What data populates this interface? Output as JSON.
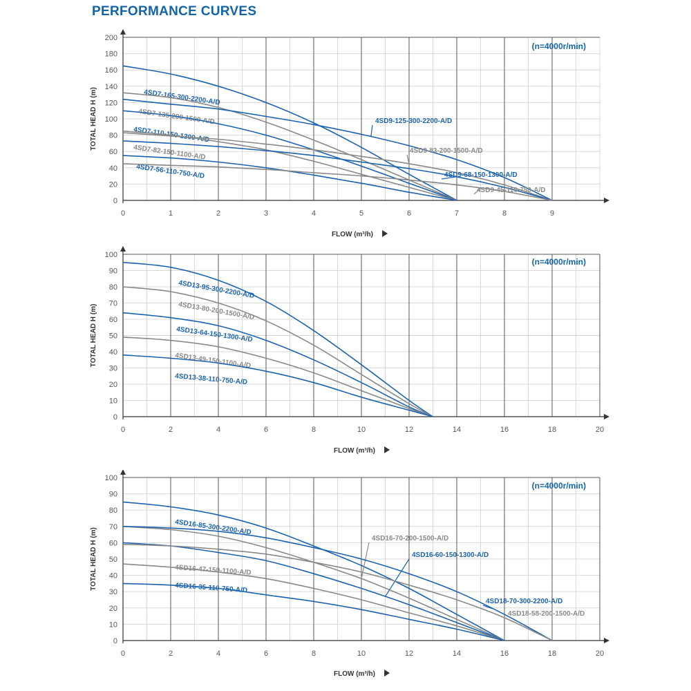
{
  "page_title": "PERFORMANCE CURVES",
  "colors": {
    "blue": "#1a62b0",
    "gray": "#888888",
    "grid_major": "#555555",
    "grid_minor": "#d8d8d8",
    "title": "#1463a8"
  },
  "chart_data": [
    {
      "type": "line",
      "xlabel": "FLOW (m³/h)",
      "ylabel": "TOTAL HEAD H (m)",
      "speed": "(n=4000r/min)",
      "xlim": [
        0,
        10
      ],
      "ylim": [
        0,
        200
      ],
      "xticks": [
        0,
        1,
        2,
        3,
        4,
        5,
        6,
        7,
        8,
        9
      ],
      "yticks": [
        0,
        20,
        40,
        60,
        80,
        100,
        120,
        140,
        160,
        180,
        200
      ],
      "grid": true,
      "series": [
        {
          "name": "4SD7-165-300-2200-A/D",
          "color": "blue",
          "x": [
            0,
            1,
            2,
            3,
            4,
            5,
            6,
            7
          ],
          "y": [
            165,
            155,
            140,
            120,
            95,
            65,
            32,
            0
          ]
        },
        {
          "name": "4SD7-135-200-1500-A/D",
          "color": "gray",
          "x": [
            0,
            1,
            2,
            3,
            4,
            5,
            6,
            7
          ],
          "y": [
            132,
            126,
            114,
            96,
            74,
            50,
            25,
            0
          ]
        },
        {
          "name": "4SD7-110-150-1300-A/D",
          "color": "blue",
          "x": [
            0,
            1,
            2,
            3,
            4,
            5,
            6,
            7
          ],
          "y": [
            110,
            104,
            94,
            80,
            62,
            42,
            21,
            0
          ]
        },
        {
          "name": "4SD7-82-150-1100-A/D",
          "color": "gray",
          "x": [
            0,
            1,
            2,
            3,
            4,
            5,
            6,
            7
          ],
          "y": [
            85,
            80,
            72,
            62,
            48,
            32,
            16,
            0
          ]
        },
        {
          "name": "4SD7-56-110-750-A/D",
          "color": "blue",
          "x": [
            0,
            1,
            2,
            3,
            4,
            5,
            6,
            7
          ],
          "y": [
            55,
            52,
            47,
            40,
            31,
            21,
            10,
            0
          ]
        },
        {
          "name": "4SD9-125-300-2200-A/D",
          "color": "blue",
          "x": [
            0,
            1,
            2,
            3,
            4,
            5,
            6,
            7,
            8,
            9
          ],
          "y": [
            124,
            118,
            112,
            103,
            93,
            81,
            67,
            50,
            28,
            0
          ]
        },
        {
          "name": "4SD9-83-200-1500-A/D",
          "color": "gray",
          "x": [
            0,
            1,
            2,
            3,
            4,
            5,
            6,
            7,
            8,
            9
          ],
          "y": [
            83,
            79,
            75,
            69,
            62,
            54,
            45,
            34,
            19,
            0
          ]
        },
        {
          "name": "4SD9-68-150-1300-A/D",
          "color": "blue",
          "x": [
            0,
            1,
            2,
            3,
            4,
            5,
            6,
            7,
            8,
            9
          ],
          "y": [
            73,
            70,
            66,
            61,
            55,
            47,
            39,
            29,
            16,
            0
          ]
        },
        {
          "name": "4SD9-45-110-750-A/D",
          "color": "gray",
          "x": [
            0,
            1,
            2,
            3,
            4,
            5,
            6,
            7,
            8,
            9
          ],
          "y": [
            45,
            43,
            41,
            38,
            34,
            30,
            25,
            19,
            11,
            0
          ]
        }
      ]
    },
    {
      "type": "line",
      "xlabel": "FLOW (m³/h)",
      "ylabel": "TOTAL HEAD H (m)",
      "speed": "(n=4000r/min)",
      "xlim": [
        0,
        20
      ],
      "ylim": [
        0,
        100
      ],
      "xticks": [
        0,
        2,
        4,
        6,
        8,
        10,
        12,
        14,
        16,
        18,
        20
      ],
      "yticks": [
        0,
        10,
        20,
        30,
        40,
        50,
        60,
        70,
        80,
        90,
        100
      ],
      "grid": true,
      "series": [
        {
          "name": "4SD13-95-300-2200-A/D",
          "color": "blue",
          "x": [
            0,
            2,
            4,
            6,
            8,
            10,
            12,
            13
          ],
          "y": [
            95,
            92,
            84,
            71,
            53,
            32,
            10,
            0
          ]
        },
        {
          "name": "4SD13-80-200-1500-A/D",
          "color": "gray",
          "x": [
            0,
            2,
            4,
            6,
            8,
            10,
            12,
            13
          ],
          "y": [
            80,
            77,
            70,
            59,
            44,
            26,
            8,
            0
          ]
        },
        {
          "name": "4SD13-64-150-1300-A/D",
          "color": "blue",
          "x": [
            0,
            2,
            4,
            6,
            8,
            10,
            12,
            13
          ],
          "y": [
            64,
            61,
            56,
            47,
            35,
            21,
            6,
            0
          ]
        },
        {
          "name": "4SD13-49-150-1100-A/D",
          "color": "gray",
          "x": [
            0,
            2,
            4,
            6,
            8,
            10,
            12,
            13
          ],
          "y": [
            49,
            47,
            43,
            36,
            27,
            16,
            5,
            0
          ]
        },
        {
          "name": "4SD13-38-110-750-A/D",
          "color": "blue",
          "x": [
            0,
            2,
            4,
            6,
            8,
            10,
            12,
            13
          ],
          "y": [
            38,
            36,
            33,
            28,
            21,
            12,
            4,
            0
          ]
        }
      ]
    },
    {
      "type": "line",
      "xlabel": "FLOW (m³/h)",
      "ylabel": "TOTAL HEAD H (m)",
      "speed": "(n=4000r/min)",
      "xlim": [
        0,
        20
      ],
      "ylim": [
        0,
        100
      ],
      "xticks": [
        0,
        2,
        4,
        6,
        8,
        10,
        12,
        14,
        16,
        18,
        20
      ],
      "yticks": [
        0,
        10,
        20,
        30,
        40,
        50,
        60,
        70,
        80,
        90,
        100
      ],
      "grid": true,
      "series": [
        {
          "name": "4SD16-85-300-2200-A/D",
          "color": "blue",
          "x": [
            0,
            2,
            4,
            6,
            8,
            10,
            12,
            14,
            16
          ],
          "y": [
            85,
            82,
            77,
            69,
            58,
            46,
            32,
            16,
            0
          ]
        },
        {
          "name": "4SD16-70-200-1500-A/D",
          "color": "gray",
          "x": [
            0,
            2,
            4,
            6,
            8,
            10,
            12,
            14,
            16
          ],
          "y": [
            70,
            68,
            64,
            57,
            48,
            38,
            26,
            13,
            0
          ]
        },
        {
          "name": "4SD16-60-150-1300-A/D",
          "color": "blue",
          "x": [
            0,
            2,
            4,
            6,
            8,
            10,
            12,
            14,
            16
          ],
          "y": [
            60,
            58,
            54,
            49,
            41,
            32,
            22,
            11,
            0
          ]
        },
        {
          "name": "4SD16-47-150-1100-A/D",
          "color": "gray",
          "x": [
            0,
            2,
            4,
            6,
            8,
            10,
            12,
            14,
            16
          ],
          "y": [
            47,
            45,
            42,
            38,
            32,
            25,
            17,
            9,
            0
          ]
        },
        {
          "name": "4SD16-35-110-750-A/D",
          "color": "blue",
          "x": [
            0,
            2,
            4,
            6,
            8,
            10,
            12,
            14,
            16
          ],
          "y": [
            35,
            34,
            32,
            28,
            24,
            19,
            13,
            7,
            0
          ]
        },
        {
          "name": "4SD18-70-300-2200-A/D",
          "color": "blue",
          "x": [
            0,
            2,
            4,
            6,
            8,
            10,
            12,
            14,
            16,
            18
          ],
          "y": [
            70,
            69,
            67,
            63,
            57,
            50,
            41,
            30,
            16,
            0
          ]
        },
        {
          "name": "4SD18-58-200-1500-A/D",
          "color": "gray",
          "x": [
            0,
            2,
            4,
            6,
            8,
            10,
            12,
            14,
            16,
            18
          ],
          "y": [
            59,
            58,
            56,
            53,
            48,
            42,
            34,
            25,
            14,
            0
          ]
        }
      ]
    }
  ]
}
